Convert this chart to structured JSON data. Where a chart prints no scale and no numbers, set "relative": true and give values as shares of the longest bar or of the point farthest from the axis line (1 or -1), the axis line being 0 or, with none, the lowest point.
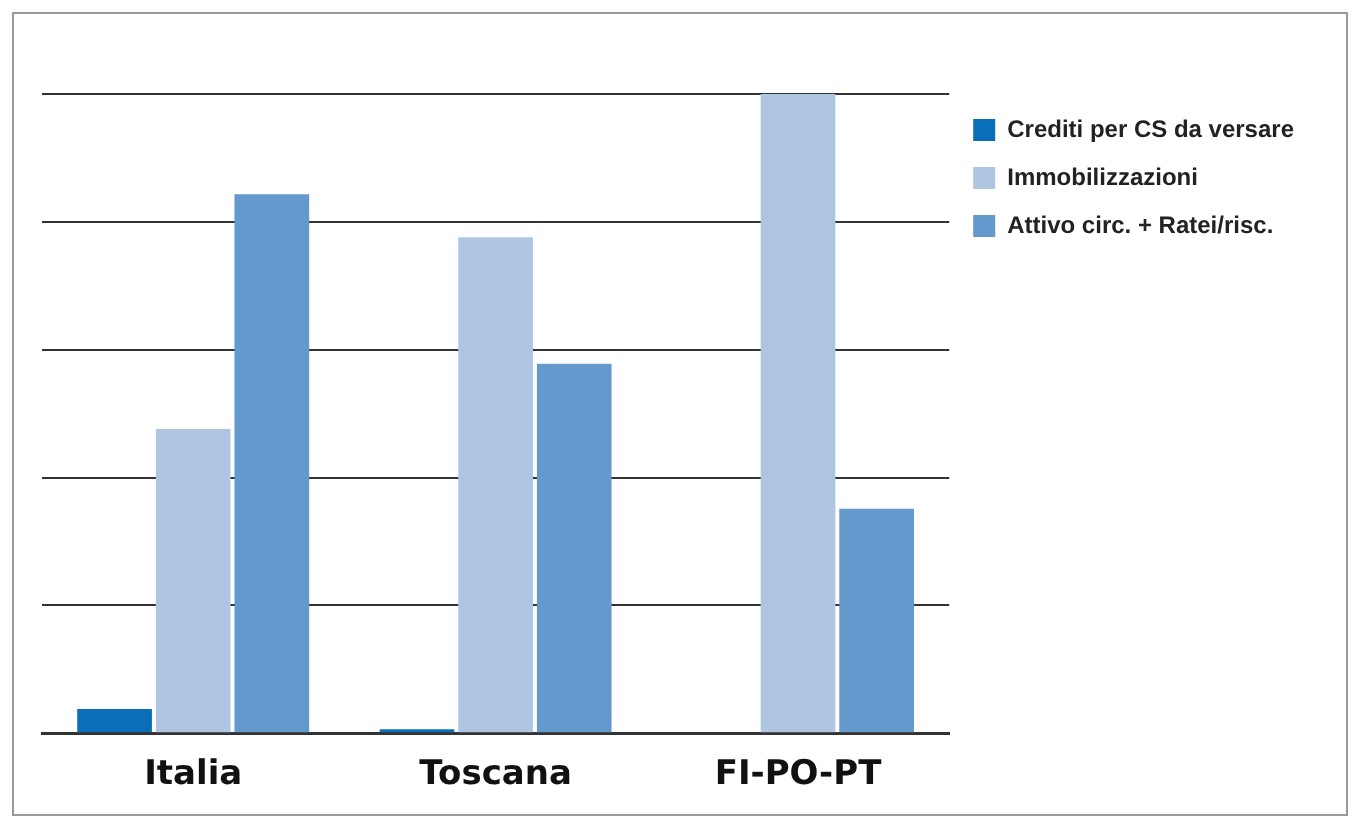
{
  "chart_data": {
    "type": "bar",
    "relative": true,
    "categories": [
      "Italia",
      "Toscana",
      "FI-PO-PT"
    ],
    "series": [
      {
        "name": "Crediti per CS da versare",
        "color": "#0a6fb8",
        "values": [
          0.038,
          0.006,
          0
        ]
      },
      {
        "name": "Immobilizzazioni",
        "color": "#aec6e2",
        "values": [
          0.476,
          0.776,
          1
        ]
      },
      {
        "name": "Attivo circ. + Ratei/risc.",
        "color": "#6399cc",
        "values": [
          0.843,
          0.578,
          0.351
        ]
      }
    ],
    "grid": "y",
    "legend": "right"
  }
}
